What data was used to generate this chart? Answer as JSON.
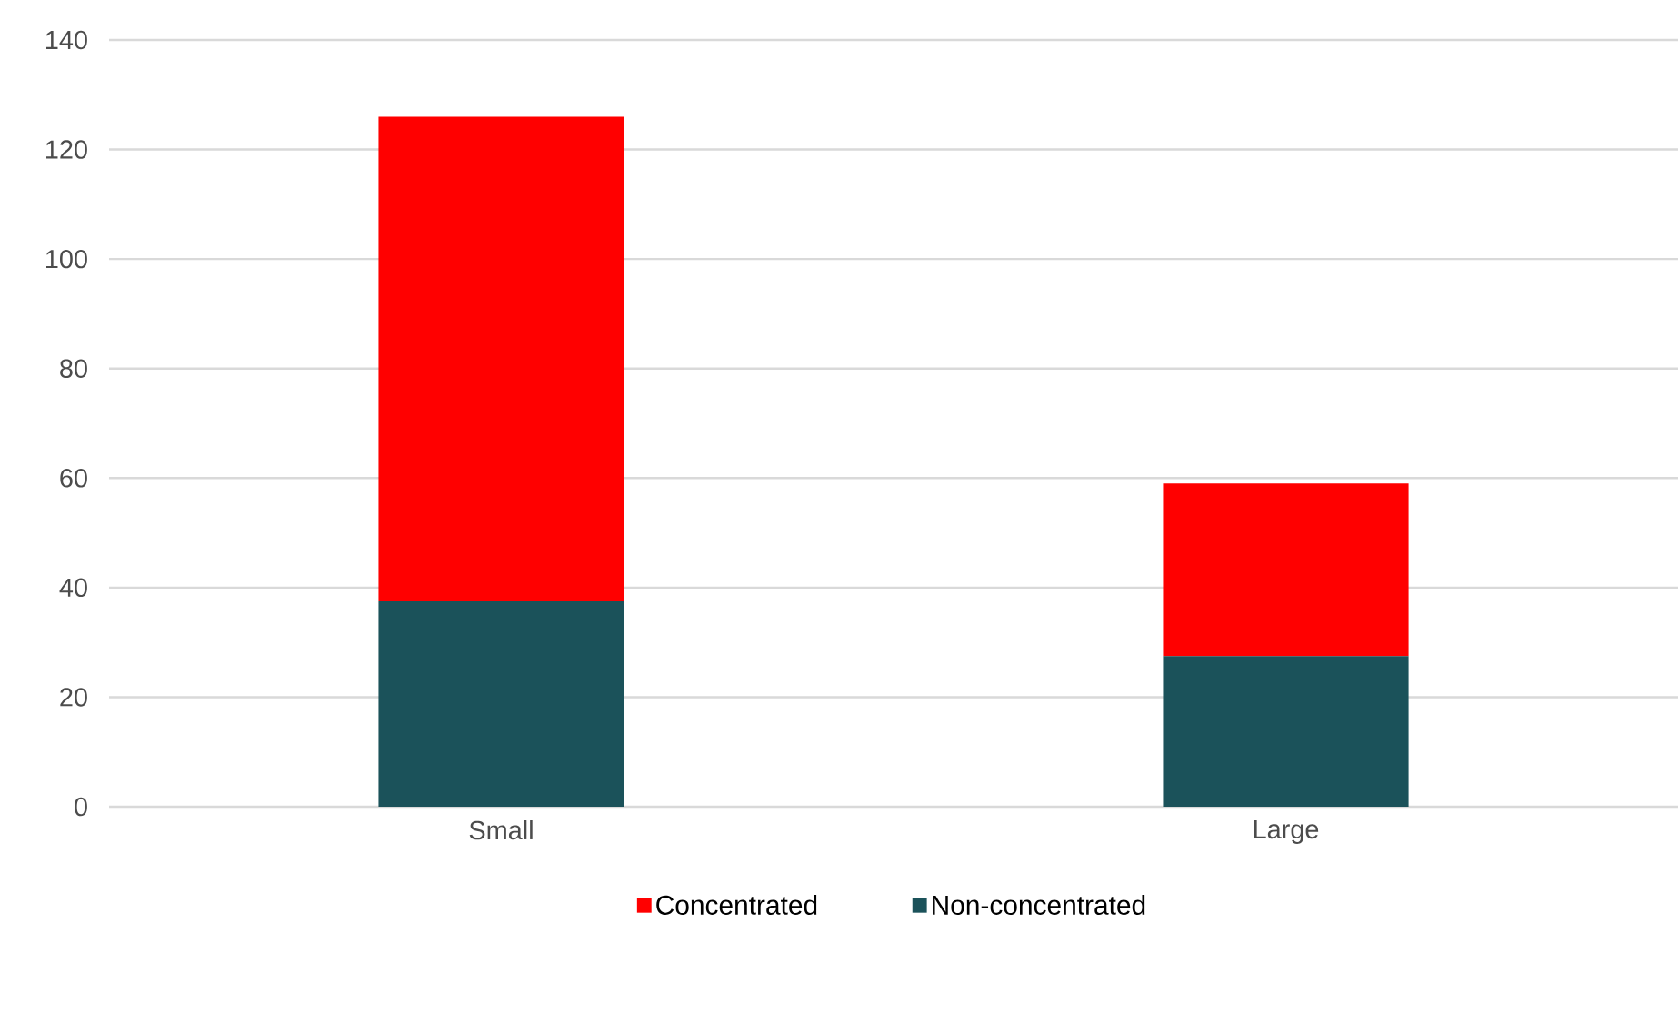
{
  "chart_data": {
    "type": "bar",
    "stacked": true,
    "categories": [
      "Small",
      "Large"
    ],
    "series": [
      {
        "name": "Non-concentrated",
        "color": "#1b525a",
        "values": [
          37.5,
          27.5
        ]
      },
      {
        "name": "Concentrated",
        "color": "#ff0000",
        "values": [
          88.5,
          31.5
        ]
      }
    ],
    "ylim": [
      0,
      140
    ],
    "yticks": [
      0,
      20,
      40,
      60,
      80,
      100,
      120,
      140
    ],
    "grid": "y",
    "legend": "bottom"
  }
}
